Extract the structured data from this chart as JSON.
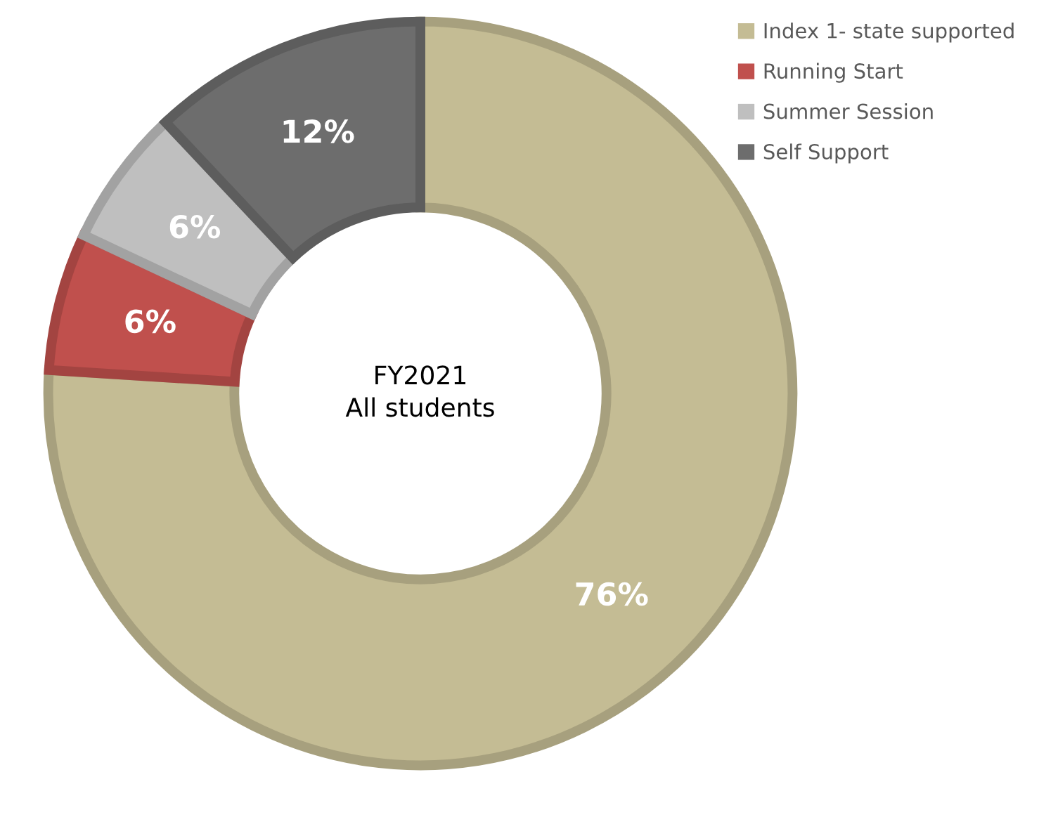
{
  "chart_data": {
    "type": "donut",
    "categories": [
      "Index 1- state supported",
      "Running Start",
      "Summer Session",
      "Self Support"
    ],
    "values": [
      76,
      6,
      6,
      12
    ],
    "colors": [
      "#c4bc94",
      "#c0504d",
      "#bfbfbf",
      "#6d6d6d"
    ],
    "value_labels": [
      "76%",
      "6%",
      "6%",
      "12%"
    ],
    "annotations": [
      "FY2021\nAll students"
    ],
    "legend": "top right"
  }
}
